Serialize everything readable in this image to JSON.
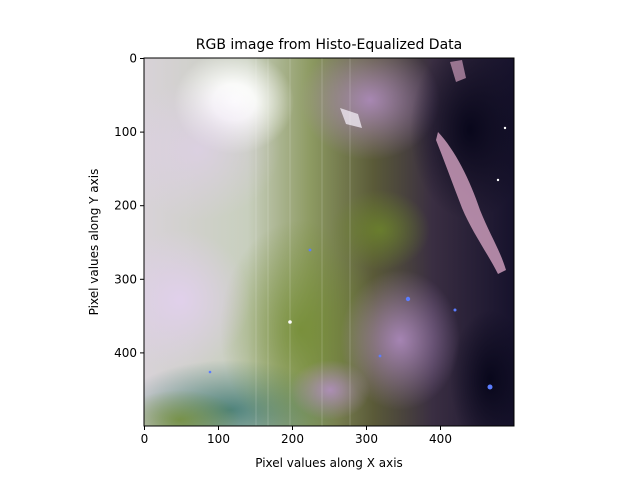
{
  "chart_data": {
    "type": "heatmap",
    "title": "RGB image from Histo-Equalized Data",
    "xlabel": "Pixel values along X axis",
    "ylabel": "Pixel values along Y axis",
    "xlim": [
      0,
      500
    ],
    "ylim": [
      500,
      0
    ],
    "x_ticks": [
      0,
      100,
      200,
      300,
      400
    ],
    "y_ticks": [
      0,
      100,
      200,
      300,
      400
    ],
    "grid": false,
    "legend": "none",
    "image": "RGB nebula image; bright white glow at upper left, purple and green hazes, dark star field on the right with a pink filament"
  }
}
